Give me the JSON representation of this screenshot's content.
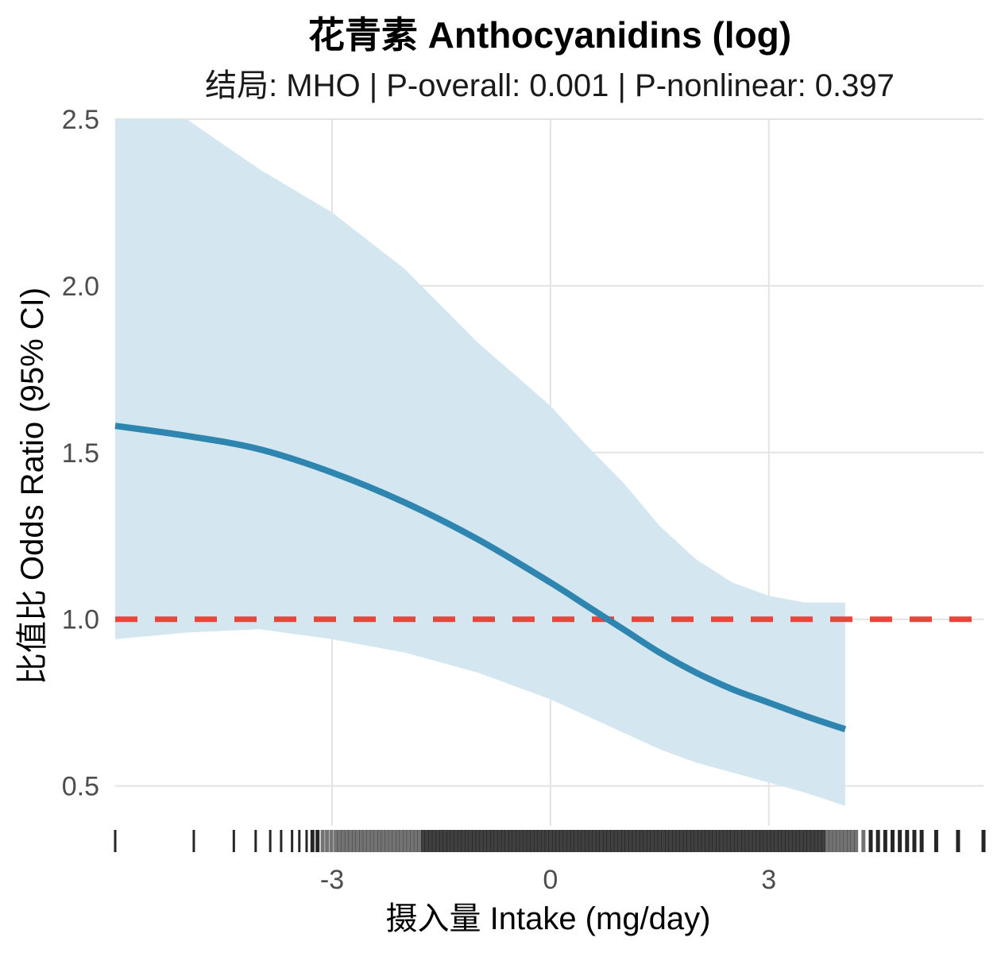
{
  "chart_data": {
    "type": "line",
    "title": "花青素 Anthocyanidins (log)",
    "subtitle": "结局: MHO | P-overall: 0.001 | P-nonlinear: 0.397",
    "xlabel": "摄入量 Intake (mg/day)",
    "ylabel": "比值比 Odds Ratio (95% CI)",
    "xlim": [
      -5.98,
      5.95
    ],
    "ylim": [
      0.38,
      2.5
    ],
    "x_ticks": [
      -3,
      0,
      3
    ],
    "x_tick_labels": [
      "-3",
      "0",
      "3"
    ],
    "y_ticks": [
      0.5,
      1.0,
      1.5,
      2.0,
      2.5
    ],
    "y_tick_labels": [
      "0.5",
      "1.0",
      "1.5",
      "2.0",
      "2.5"
    ],
    "grid": true,
    "reference_line": {
      "y": 1.0,
      "style": "dashed",
      "color": "#e8453c"
    },
    "colors": {
      "line": "#2e86b0",
      "band": "#d4e6ef",
      "grid": "#e3e3e3",
      "rug": "#000000"
    },
    "series": [
      {
        "x": [
          -5.98,
          -5.0,
          -4.0,
          -3.0,
          -2.0,
          -1.0,
          0.0,
          0.5,
          1.0,
          1.5,
          2.0,
          2.5,
          3.0,
          3.5,
          4.05
        ],
        "values": [
          1.58,
          1.55,
          1.51,
          1.44,
          1.35,
          1.24,
          1.11,
          1.04,
          0.97,
          0.9,
          0.84,
          0.79,
          0.75,
          0.71,
          0.67
        ],
        "lower": [
          0.94,
          0.96,
          0.97,
          0.94,
          0.9,
          0.84,
          0.76,
          0.71,
          0.66,
          0.61,
          0.57,
          0.54,
          0.51,
          0.48,
          0.44
        ],
        "upper": [
          2.65,
          2.5,
          2.35,
          2.22,
          2.05,
          1.83,
          1.64,
          1.52,
          1.41,
          1.28,
          1.18,
          1.11,
          1.07,
          1.05,
          1.05
        ]
      }
    ],
    "rug_x": [
      -5.98,
      -4.9,
      -4.35,
      -4.05,
      -3.85,
      -3.7,
      -3.55,
      -3.45,
      -3.35,
      -3.27,
      -3.2,
      -3.13,
      -3.07,
      -3.01,
      -2.95,
      -2.9,
      -2.85,
      -2.8,
      -2.75,
      -2.7,
      -2.65,
      -2.6,
      -2.55,
      -2.5,
      -2.45,
      -2.4,
      -2.35,
      -2.3,
      -2.25,
      -2.2,
      -2.15,
      -2.1,
      -2.05,
      -2.0,
      -1.95,
      -1.9,
      -1.85,
      -1.8,
      -1.75,
      -1.7,
      -1.65,
      -1.6,
      -1.55,
      -1.5,
      -1.45,
      -1.4,
      -1.35,
      -1.3,
      -1.25,
      -1.2,
      -1.15,
      -1.1,
      -1.05,
      -1.0,
      -0.95,
      -0.9,
      -0.85,
      -0.8,
      -0.75,
      -0.7,
      -0.65,
      -0.6,
      -0.55,
      -0.5,
      -0.45,
      -0.4,
      -0.35,
      -0.3,
      -0.25,
      -0.2,
      -0.15,
      -0.1,
      -0.05,
      0.0,
      0.05,
      0.1,
      0.15,
      0.2,
      0.25,
      0.3,
      0.35,
      0.4,
      0.45,
      0.5,
      0.55,
      0.6,
      0.65,
      0.7,
      0.75,
      0.8,
      0.85,
      0.9,
      0.95,
      1.0,
      1.05,
      1.1,
      1.15,
      1.2,
      1.25,
      1.3,
      1.35,
      1.4,
      1.45,
      1.5,
      1.55,
      1.6,
      1.65,
      1.7,
      1.75,
      1.8,
      1.85,
      1.9,
      1.95,
      2.0,
      2.05,
      2.1,
      2.15,
      2.2,
      2.25,
      2.3,
      2.35,
      2.4,
      2.45,
      2.5,
      2.55,
      2.6,
      2.65,
      2.7,
      2.75,
      2.8,
      2.85,
      2.9,
      2.95,
      3.0,
      3.05,
      3.1,
      3.15,
      3.2,
      3.25,
      3.3,
      3.35,
      3.4,
      3.45,
      3.5,
      3.55,
      3.6,
      3.65,
      3.7,
      3.75,
      3.8,
      3.85,
      3.9,
      3.95,
      4.0,
      4.05,
      4.1,
      4.15,
      4.2,
      4.3,
      4.4,
      4.5,
      4.6,
      4.7,
      4.8,
      4.9,
      5.0,
      5.1,
      5.3,
      5.6,
      5.95
    ]
  }
}
